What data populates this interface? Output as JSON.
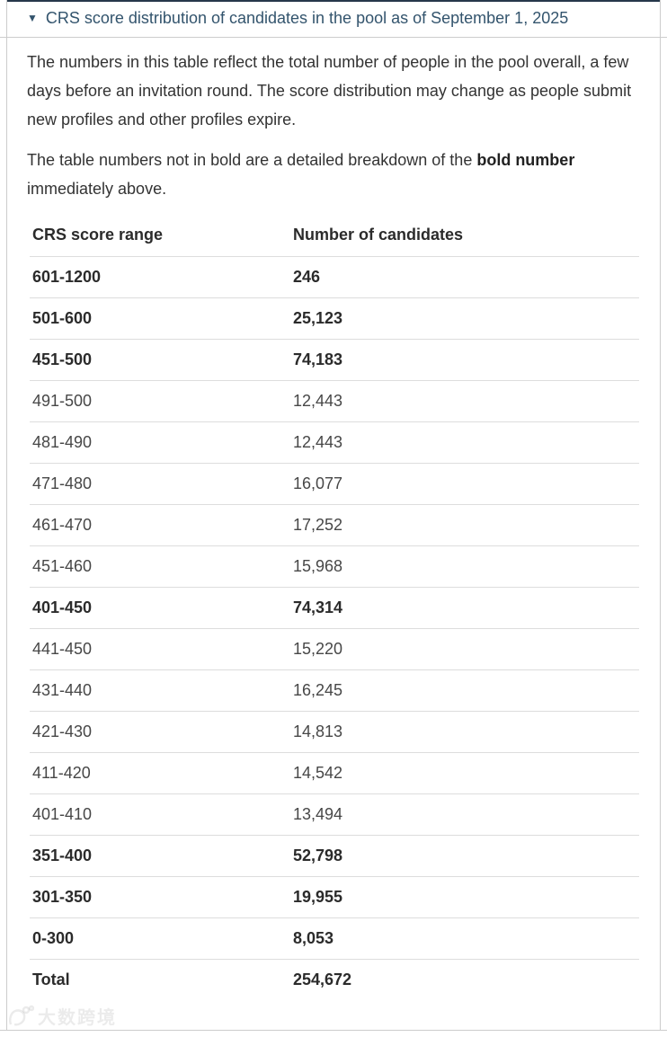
{
  "panel": {
    "summary": {
      "expander_icon": "▼",
      "title": "CRS score distribution of candidates in the pool as of September 1, 2025"
    },
    "paragraph1": "The numbers in this table reflect the total number of people in the pool overall, a few days before an invitation round. The score distribution may change as people submit new profiles and other profiles expire.",
    "paragraph2": {
      "before_bold": "The table numbers not in bold are a detailed breakdown of the ",
      "bold": "bold number",
      "after_bold": " immediately above."
    }
  },
  "table": {
    "headers": [
      "CRS score range",
      "Number of candidates"
    ],
    "rows": [
      {
        "range": "601-1200",
        "count": "246",
        "bold": true
      },
      {
        "range": "501-600",
        "count": "25,123",
        "bold": true
      },
      {
        "range": "451-500",
        "count": "74,183",
        "bold": true
      },
      {
        "range": "491-500",
        "count": "12,443",
        "bold": false
      },
      {
        "range": "481-490",
        "count": "12,443",
        "bold": false
      },
      {
        "range": "471-480",
        "count": "16,077",
        "bold": false
      },
      {
        "range": "461-470",
        "count": "17,252",
        "bold": false
      },
      {
        "range": "451-460",
        "count": "15,968",
        "bold": false
      },
      {
        "range": "401-450",
        "count": "74,314",
        "bold": true
      },
      {
        "range": "441-450",
        "count": "15,220",
        "bold": false
      },
      {
        "range": "431-440",
        "count": "16,245",
        "bold": false
      },
      {
        "range": "421-430",
        "count": "14,813",
        "bold": false
      },
      {
        "range": "411-420",
        "count": "14,542",
        "bold": false
      },
      {
        "range": "401-410",
        "count": "13,494",
        "bold": false
      },
      {
        "range": "351-400",
        "count": "52,798",
        "bold": true
      },
      {
        "range": "301-350",
        "count": "19,955",
        "bold": true
      },
      {
        "range": "0-300",
        "count": "8,053",
        "bold": true
      },
      {
        "range": "Total",
        "count": "254,672",
        "bold": true
      }
    ]
  },
  "watermark": {
    "text": "大数跨境"
  },
  "colors": {
    "accent_title": "#33546d",
    "top_bar": "#26374a",
    "panel_border": "#cccccc",
    "row_border": "#dddddd",
    "body_text": "#333333"
  }
}
